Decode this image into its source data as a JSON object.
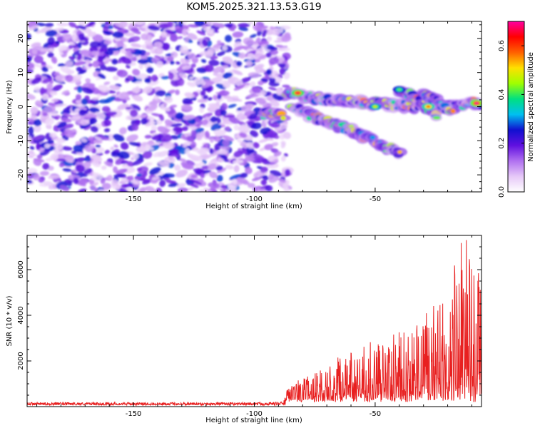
{
  "title": "KOM5.2025.321.13.53.G19",
  "chart_data": [
    {
      "type": "heatmap",
      "name": "spectrogram",
      "xlabel": "Height of straight line (km)",
      "ylabel": "Frequency (Hz)",
      "xlim": [
        -194,
        -6
      ],
      "ylim": [
        -25,
        25
      ],
      "xticks": [
        -150,
        -100,
        -50
      ],
      "yticks": [
        -20,
        -10,
        0,
        10,
        20
      ],
      "noise_region_x": [
        -194,
        -86
      ],
      "signal_tracks": [
        {
          "x": [
            -86,
            -70,
            -50,
            -30,
            -6
          ],
          "y": [
            4,
            2,
            1,
            0,
            1
          ]
        },
        {
          "x": [
            -84,
            -72,
            -60,
            -48,
            -40
          ],
          "y": [
            0,
            -4,
            -7,
            -11,
            -14
          ]
        },
        {
          "x": [
            -40,
            -34,
            -28,
            -24
          ],
          "y": [
            5,
            3,
            0,
            -3
          ]
        },
        {
          "x": [
            -30,
            -26,
            -22,
            -18
          ],
          "y": [
            4,
            2,
            0,
            -2
          ]
        },
        {
          "x": [
            -96,
            -92,
            -88
          ],
          "y": [
            -2,
            -2,
            -3
          ]
        }
      ],
      "colorbar": {
        "label": "Normalized spectral amplitude",
        "range": [
          0.0,
          0.7
        ],
        "ticks": [
          0.0,
          0.2,
          0.4,
          0.6
        ],
        "tick_labels": [
          "0.0",
          "0.2",
          "0.4",
          "0.6"
        ],
        "colormap": [
          "#ffffff",
          "#e6c8f8",
          "#b070f0",
          "#6010e0",
          "#1010d0",
          "#00c0f0",
          "#00e080",
          "#a0ff00",
          "#ffe000",
          "#ff6000",
          "#ff0000",
          "#ff00a0"
        ]
      }
    },
    {
      "type": "line",
      "name": "snr",
      "xlabel": "Height of straight line (km)",
      "ylabel": "SNR (10 * v/v)",
      "xlim": [
        -194,
        -6
      ],
      "ylim": [
        0,
        7500
      ],
      "xticks": [
        -150,
        -100,
        -50
      ],
      "yticks": [
        2000,
        4000,
        6000
      ],
      "color": "#e82020",
      "envelope": {
        "x": [
          -194,
          -100,
          -88,
          -86,
          -80,
          -70,
          -60,
          -50,
          -40,
          -30,
          -20,
          -14,
          -10,
          -6
        ],
        "y": [
          120,
          120,
          150,
          800,
          1200,
          1800,
          2400,
          2800,
          3200,
          3800,
          5000,
          7200,
          6800,
          5500
        ]
      }
    }
  ]
}
